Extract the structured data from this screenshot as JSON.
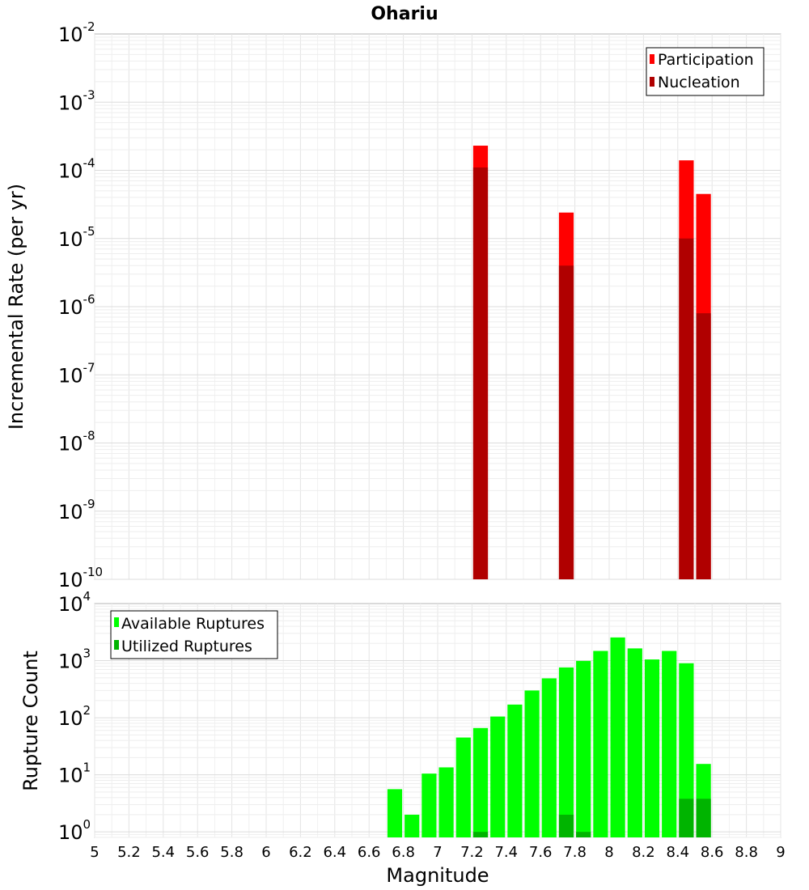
{
  "chart_data": [
    {
      "type": "bar",
      "title": "Ohariu",
      "xlabel": "",
      "ylabel": "Incremental Rate (per yr)",
      "yscale": "log",
      "ylim": [
        1e-10,
        0.01
      ],
      "xlim": [
        5,
        9
      ],
      "grid": true,
      "legend_position": "top-right",
      "y_tick_labels": [
        {
          "base": "10",
          "exp": "-10"
        },
        {
          "base": "10",
          "exp": "-9"
        },
        {
          "base": "10",
          "exp": "-8"
        },
        {
          "base": "10",
          "exp": "-7"
        },
        {
          "base": "10",
          "exp": "-6"
        },
        {
          "base": "10",
          "exp": "-5"
        },
        {
          "base": "10",
          "exp": "-4"
        },
        {
          "base": "10",
          "exp": "-3"
        },
        {
          "base": "10",
          "exp": "-2"
        }
      ],
      "bar_width": 0.1,
      "series": [
        {
          "name": "Participation",
          "color": "#ff0000",
          "points": [
            {
              "x": 7.25,
              "y": 0.00023
            },
            {
              "x": 7.75,
              "y": 2.4e-05
            },
            {
              "x": 8.45,
              "y": 0.00014
            },
            {
              "x": 8.55,
              "y": 4.5e-05
            }
          ]
        },
        {
          "name": "Nucleation",
          "color": "#b00000",
          "points": [
            {
              "x": 7.25,
              "y": 0.00011
            },
            {
              "x": 7.75,
              "y": 4e-06
            },
            {
              "x": 8.45,
              "y": 1e-05
            },
            {
              "x": 8.55,
              "y": 8e-07
            }
          ]
        }
      ]
    },
    {
      "type": "bar",
      "title": "",
      "xlabel": "Magnitude",
      "ylabel": "Rupture Count",
      "yscale": "log",
      "ylim": [
        0.8,
        10000
      ],
      "xlim": [
        5,
        9
      ],
      "grid": true,
      "legend_position": "top-left",
      "y_tick_labels": [
        {
          "base": "10",
          "exp": "0"
        },
        {
          "base": "10",
          "exp": "1"
        },
        {
          "base": "10",
          "exp": "2"
        },
        {
          "base": "10",
          "exp": "3"
        },
        {
          "base": "10",
          "exp": "4"
        }
      ],
      "x_tick_labels": [
        "5",
        "5.2",
        "5.4",
        "5.6",
        "5.8",
        "6",
        "6.2",
        "6.4",
        "6.6",
        "6.8",
        "7",
        "7.2",
        "7.4",
        "7.6",
        "7.8",
        "8",
        "8.2",
        "8.4",
        "8.6",
        "8.8",
        "9"
      ],
      "bar_width": 0.1,
      "series": [
        {
          "name": "Available Ruptures",
          "color": "#00ff00",
          "points": [
            {
              "x": 6.75,
              "y": 5.6
            },
            {
              "x": 6.85,
              "y": 2
            },
            {
              "x": 6.95,
              "y": 10.5
            },
            {
              "x": 7.05,
              "y": 13.5
            },
            {
              "x": 7.15,
              "y": 45
            },
            {
              "x": 7.25,
              "y": 66
            },
            {
              "x": 7.35,
              "y": 105
            },
            {
              "x": 7.45,
              "y": 170
            },
            {
              "x": 7.55,
              "y": 300
            },
            {
              "x": 7.65,
              "y": 490
            },
            {
              "x": 7.75,
              "y": 760
            },
            {
              "x": 7.85,
              "y": 990
            },
            {
              "x": 7.95,
              "y": 1480
            },
            {
              "x": 8.05,
              "y": 2550
            },
            {
              "x": 8.15,
              "y": 1640
            },
            {
              "x": 8.25,
              "y": 1050
            },
            {
              "x": 8.35,
              "y": 1480
            },
            {
              "x": 8.45,
              "y": 900
            },
            {
              "x": 8.55,
              "y": 15.5
            }
          ]
        },
        {
          "name": "Utilized Ruptures",
          "color": "#00b400",
          "points": [
            {
              "x": 7.25,
              "y": 1
            },
            {
              "x": 7.75,
              "y": 2
            },
            {
              "x": 7.85,
              "y": 1
            },
            {
              "x": 8.45,
              "y": 3.8
            },
            {
              "x": 8.55,
              "y": 3.8
            }
          ]
        }
      ]
    }
  ]
}
